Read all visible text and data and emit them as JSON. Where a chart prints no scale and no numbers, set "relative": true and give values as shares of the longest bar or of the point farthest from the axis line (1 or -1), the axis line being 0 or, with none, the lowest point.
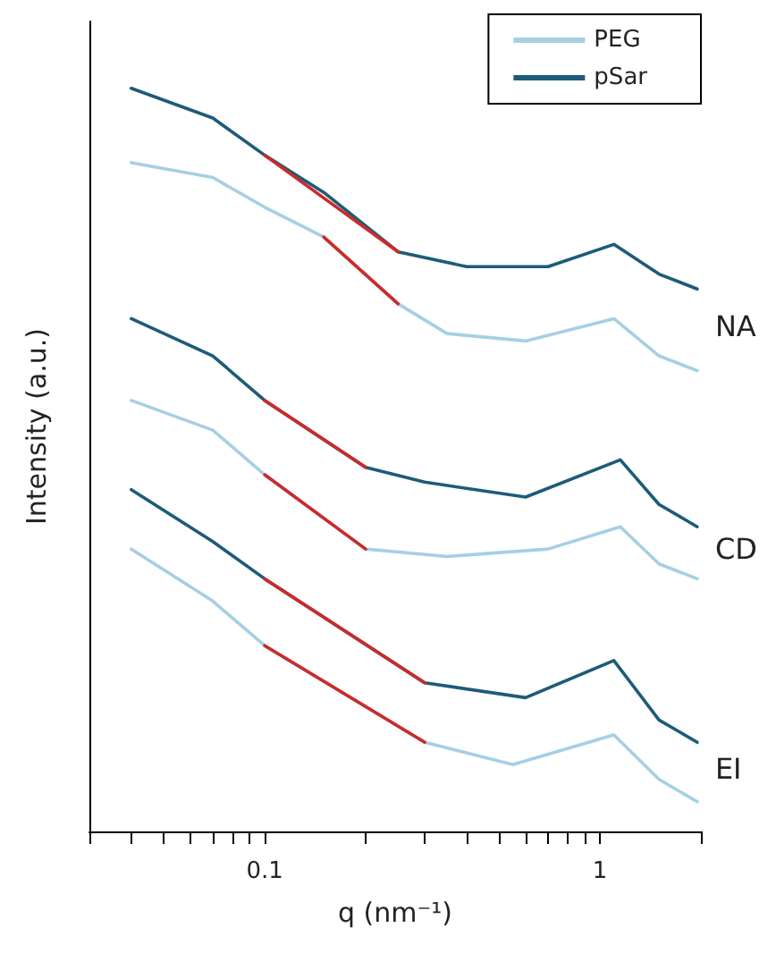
{
  "chart_data": {
    "type": "line",
    "relative": true,
    "xlabel": "q (nm⁻¹)",
    "ylabel": "Intensity (a.u.)",
    "log": "x",
    "legend": "top right",
    "grid": false,
    "marker": "none",
    "line_style": "solid",
    "xlim": [
      0.03,
      2
    ],
    "xticks": [
      {
        "value": 0.03,
        "label": null
      },
      {
        "value": 0.04,
        "label": null
      },
      {
        "value": 0.05,
        "label": null
      },
      {
        "value": 0.06,
        "label": null
      },
      {
        "value": 0.07,
        "label": null
      },
      {
        "value": 0.08,
        "label": null
      },
      {
        "value": 0.09,
        "label": null
      },
      0.1,
      {
        "value": 0.2,
        "label": null
      },
      {
        "value": 0.3,
        "label": null
      },
      {
        "value": 0.4,
        "label": null
      },
      {
        "value": 0.5,
        "label": null
      },
      {
        "value": 0.6,
        "label": null
      },
      {
        "value": 0.7,
        "label": null
      },
      {
        "value": 0.8,
        "label": null
      },
      {
        "value": 0.9,
        "label": null
      },
      1,
      {
        "value": 2,
        "label": null
      }
    ],
    "annotations": [
      "NA",
      "CD",
      "EI"
    ],
    "series": [
      {
        "name": "PEG",
        "color": "#a6cfe3",
        "x": [
          0.04,
          0.07,
          0.1,
          0.15,
          0.25,
          0.35,
          0.6,
          1.1,
          1.5,
          1.95
        ],
        "values": [
          0.9,
          0.88,
          0.84,
          0.8,
          0.71,
          0.67,
          0.66,
          0.69,
          0.64,
          0.62
        ]
      },
      {
        "name": "pSar",
        "color": "#1d5b78",
        "x": [
          0.04,
          0.07,
          0.1,
          0.15,
          0.25,
          0.4,
          0.7,
          1.1,
          1.5,
          1.95
        ],
        "values": [
          1.0,
          0.96,
          0.91,
          0.86,
          0.78,
          0.76,
          0.76,
          0.79,
          0.75,
          0.73
        ]
      },
      {
        "color": "#a6cfe3",
        "x": [
          0.04,
          0.07,
          0.1,
          0.2,
          0.35,
          0.7,
          1.15,
          1.5,
          1.95
        ],
        "values": [
          0.58,
          0.54,
          0.48,
          0.38,
          0.37,
          0.38,
          0.41,
          0.36,
          0.34
        ]
      },
      {
        "color": "#1d5b78",
        "x": [
          0.04,
          0.07,
          0.1,
          0.2,
          0.3,
          0.6,
          1.15,
          1.5,
          1.95
        ],
        "values": [
          0.69,
          0.64,
          0.58,
          0.49,
          0.47,
          0.45,
          0.5,
          0.44,
          0.41
        ]
      },
      {
        "color": "#a6cfe3",
        "x": [
          0.04,
          0.07,
          0.1,
          0.3,
          0.55,
          1.1,
          1.5,
          1.95
        ],
        "values": [
          0.38,
          0.31,
          0.25,
          0.12,
          0.09,
          0.13,
          0.07,
          0.04
        ]
      },
      {
        "color": "#1d5b78",
        "x": [
          0.04,
          0.07,
          0.1,
          0.3,
          0.6,
          1.1,
          1.5,
          1.95
        ],
        "values": [
          0.46,
          0.39,
          0.34,
          0.2,
          0.18,
          0.23,
          0.15,
          0.12
        ]
      },
      {
        "color": "#cc2a2a",
        "x": [
          0.1,
          0.25
        ],
        "values": [
          0.91,
          0.78
        ]
      },
      {
        "color": "#cc2a2a",
        "x": [
          0.15,
          0.25
        ],
        "values": [
          0.8,
          0.71
        ]
      },
      {
        "color": "#cc2a2a",
        "x": [
          0.1,
          0.2
        ],
        "values": [
          0.58,
          0.49
        ]
      },
      {
        "color": "#cc2a2a",
        "x": [
          0.1,
          0.2
        ],
        "values": [
          0.48,
          0.38
        ]
      },
      {
        "color": "#cc2a2a",
        "x": [
          0.1,
          0.3
        ],
        "values": [
          0.34,
          0.2
        ]
      },
      {
        "color": "#cc2a2a",
        "x": [
          0.1,
          0.3
        ],
        "values": [
          0.25,
          0.12
        ]
      }
    ]
  }
}
